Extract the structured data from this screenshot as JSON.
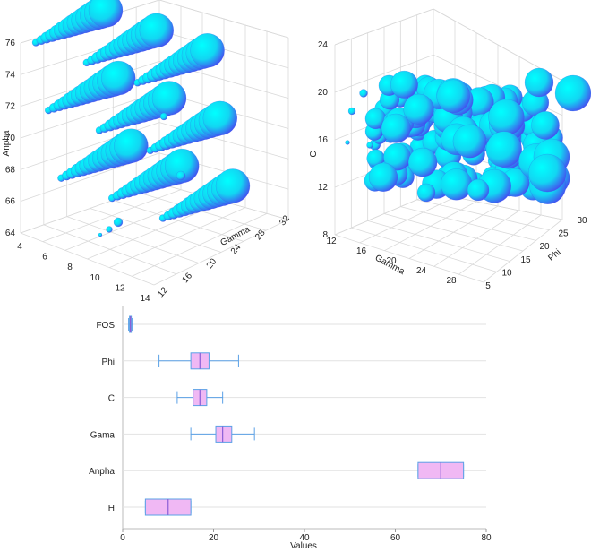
{
  "chart_data": [
    {
      "type": "scatter3d",
      "xlabel": "Gamma",
      "ylabel": "",
      "zlabel": "Anpha",
      "x_ticks": [
        "12",
        "16",
        "20",
        "24",
        "28",
        "32"
      ],
      "y_ticks": [
        "4",
        "6",
        "8",
        "10",
        "12",
        "14"
      ],
      "z_ticks": [
        "64",
        "66",
        "68",
        "70",
        "72",
        "74",
        "76"
      ],
      "marker_color": "#00ffff",
      "marker_shade": "#4b3cf0",
      "columns": [
        {
          "z": 75,
          "y": 4
        },
        {
          "z": 71,
          "y": 5
        },
        {
          "z": 67,
          "y": 6
        },
        {
          "z": 75,
          "y": 8
        },
        {
          "z": 71,
          "y": 9
        },
        {
          "z": 67,
          "y": 10
        },
        {
          "z": 75,
          "y": 12
        },
        {
          "z": 71,
          "y": 13
        },
        {
          "z": 67,
          "y": 14
        }
      ]
    },
    {
      "type": "scatter3d",
      "xlabel": "Gamma",
      "ylabel": "Phi",
      "zlabel": "C",
      "x_ticks": [
        "12",
        "16",
        "20",
        "24",
        "28"
      ],
      "y_ticks": [
        "5",
        "10",
        "15",
        "20",
        "25",
        "30"
      ],
      "z_ticks": [
        "8",
        "12",
        "16",
        "20",
        "24"
      ],
      "marker_color": "#00ffff",
      "marker_shade": "#4b3cf0"
    },
    {
      "type": "box",
      "xlabel": "Values",
      "xlim": [
        0,
        80
      ],
      "x_ticks": [
        "0",
        "20",
        "40",
        "60",
        "80"
      ],
      "box_color": "#f0b8f4",
      "line_color": "#5aa0e6",
      "categories": [
        "FOS",
        "Phi",
        "C",
        "Gama",
        "Anpha",
        "H"
      ],
      "boxes": [
        {
          "name": "FOS",
          "min": 1.3,
          "q1": 1.5,
          "median": 1.7,
          "q3": 1.9,
          "max": 2.1
        },
        {
          "name": "Phi",
          "min": 8,
          "q1": 15,
          "median": 17,
          "q3": 19,
          "max": 25.5
        },
        {
          "name": "C",
          "min": 12,
          "q1": 15.5,
          "median": 17,
          "q3": 18.5,
          "max": 22
        },
        {
          "name": "Gama",
          "min": 15,
          "q1": 20.5,
          "median": 22,
          "q3": 24,
          "max": 29
        },
        {
          "name": "Anpha",
          "min": 65,
          "q1": 65,
          "median": 70,
          "q3": 75,
          "max": 75
        },
        {
          "name": "H",
          "min": 5,
          "q1": 5,
          "median": 10,
          "q3": 15,
          "max": 15
        }
      ]
    }
  ]
}
